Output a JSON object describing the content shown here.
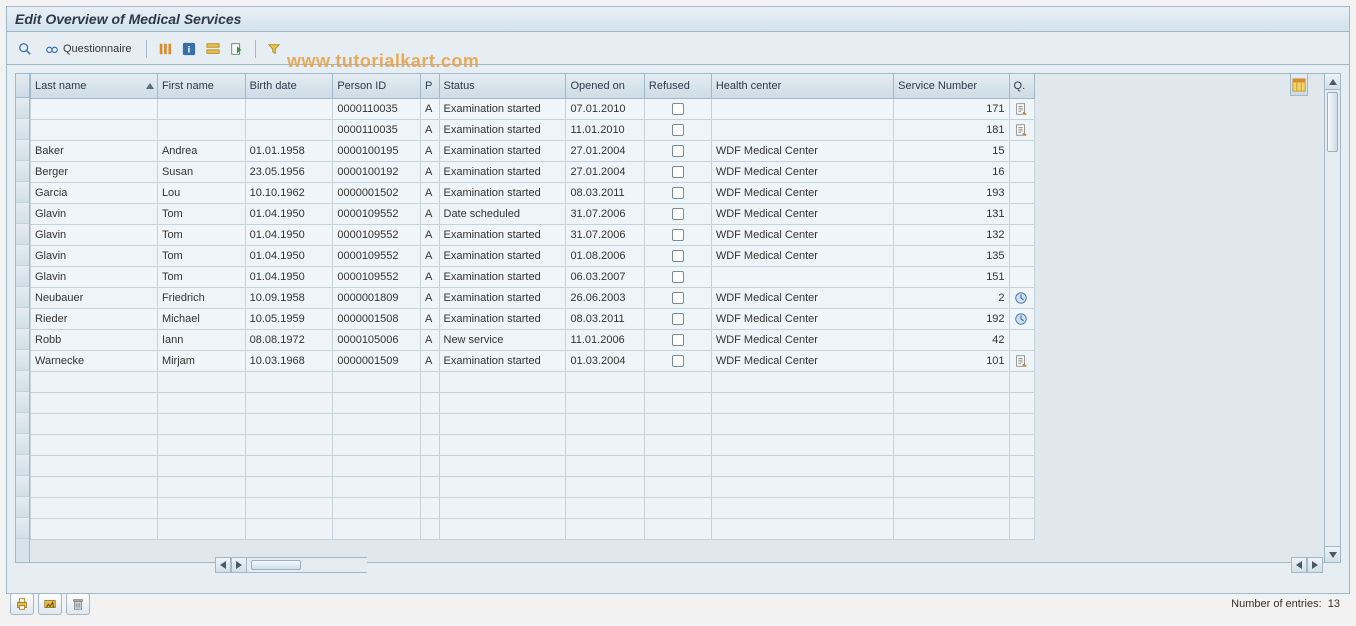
{
  "title": "Edit Overview of Medical Services",
  "watermark": "www.tutorialkart.com",
  "toolbar": {
    "questionnaire_label": "Questionnaire"
  },
  "colors": {
    "window_bg": "#e6eef4",
    "border": "#a0b8c8",
    "header_grad_top": "#e4ecf2",
    "header_grad_bot": "#cedce6",
    "row_bg": "#f0f5f9",
    "accent": "#e6a44a"
  },
  "table": {
    "columns": [
      {
        "key": "last_name",
        "label": "Last name",
        "width": 110,
        "align": "left",
        "sorted_asc": true
      },
      {
        "key": "first_name",
        "label": "First name",
        "width": 76,
        "align": "left"
      },
      {
        "key": "birth_date",
        "label": "Birth date",
        "width": 76,
        "align": "left"
      },
      {
        "key": "person_id",
        "label": "Person ID",
        "width": 76,
        "align": "left"
      },
      {
        "key": "p",
        "label": "P",
        "width": 16,
        "align": "left"
      },
      {
        "key": "status",
        "label": "Status",
        "width": 110,
        "align": "left"
      },
      {
        "key": "opened_on",
        "label": "Opened on",
        "width": 68,
        "align": "left"
      },
      {
        "key": "refused",
        "label": "Refused",
        "width": 58,
        "align": "center"
      },
      {
        "key": "health_center",
        "label": "Health center",
        "width": 158,
        "align": "left"
      },
      {
        "key": "service_number",
        "label": "Service Number",
        "width": 100,
        "align": "right"
      },
      {
        "key": "q",
        "label": "Q.",
        "width": 22,
        "align": "center"
      }
    ],
    "rows": [
      {
        "last_name": "",
        "first_name": "",
        "birth_date": "",
        "person_id": "0000110035",
        "p": "A",
        "status": "Examination started",
        "opened_on": "07.01.2010",
        "refused": false,
        "health_center": "",
        "service_number": "171",
        "q": "doc"
      },
      {
        "last_name": "",
        "first_name": "",
        "birth_date": "",
        "person_id": "0000110035",
        "p": "A",
        "status": "Examination started",
        "opened_on": "11.01.2010",
        "refused": false,
        "health_center": "",
        "service_number": "181",
        "q": "doc"
      },
      {
        "last_name": "Baker",
        "first_name": "Andrea",
        "birth_date": "01.01.1958",
        "person_id": "0000100195",
        "p": "A",
        "status": "Examination started",
        "opened_on": "27.01.2004",
        "refused": false,
        "health_center": "WDF Medical Center",
        "service_number": "15",
        "q": ""
      },
      {
        "last_name": "Berger",
        "first_name": "Susan",
        "birth_date": "23.05.1956",
        "person_id": "0000100192",
        "p": "A",
        "status": "Examination started",
        "opened_on": "27.01.2004",
        "refused": false,
        "health_center": "WDF Medical Center",
        "service_number": "16",
        "q": ""
      },
      {
        "last_name": "Garcia",
        "first_name": "Lou",
        "birth_date": "10.10.1962",
        "person_id": "0000001502",
        "p": "A",
        "status": "Examination started",
        "opened_on": "08.03.2011",
        "refused": false,
        "health_center": "WDF Medical Center",
        "service_number": "193",
        "q": ""
      },
      {
        "last_name": "Glavin",
        "first_name": "Tom",
        "birth_date": "01.04.1950",
        "person_id": "0000109552",
        "p": "A",
        "status": "Date scheduled",
        "opened_on": "31.07.2006",
        "refused": false,
        "health_center": "WDF Medical Center",
        "service_number": "131",
        "q": ""
      },
      {
        "last_name": "Glavin",
        "first_name": "Tom",
        "birth_date": "01.04.1950",
        "person_id": "0000109552",
        "p": "A",
        "status": "Examination started",
        "opened_on": "31.07.2006",
        "refused": false,
        "health_center": "WDF Medical Center",
        "service_number": "132",
        "q": ""
      },
      {
        "last_name": "Glavin",
        "first_name": "Tom",
        "birth_date": "01.04.1950",
        "person_id": "0000109552",
        "p": "A",
        "status": "Examination started",
        "opened_on": "01.08.2006",
        "refused": false,
        "health_center": "WDF Medical Center",
        "service_number": "135",
        "q": ""
      },
      {
        "last_name": "Glavin",
        "first_name": "Tom",
        "birth_date": "01.04.1950",
        "person_id": "0000109552",
        "p": "A",
        "status": "Examination started",
        "opened_on": "06.03.2007",
        "refused": false,
        "health_center": "",
        "service_number": "151",
        "q": ""
      },
      {
        "last_name": "Neubauer",
        "first_name": "Friedrich",
        "birth_date": "10.09.1958",
        "person_id": "0000001809",
        "p": "A",
        "status": "Examination started",
        "opened_on": "26.06.2003",
        "refused": false,
        "health_center": "WDF Medical Center",
        "service_number": "2",
        "q": "clock"
      },
      {
        "last_name": "Rieder",
        "first_name": "Michael",
        "birth_date": "10.05.1959",
        "person_id": "0000001508",
        "p": "A",
        "status": "Examination started",
        "opened_on": "08.03.2011",
        "refused": false,
        "health_center": "WDF Medical Center",
        "service_number": "192",
        "q": "clock"
      },
      {
        "last_name": "Robb",
        "first_name": "Iann",
        "birth_date": "08.08.1972",
        "person_id": "0000105006",
        "p": "A",
        "status": "New service",
        "opened_on": "11.01.2006",
        "refused": false,
        "health_center": "WDF Medical Center",
        "service_number": "42",
        "q": ""
      },
      {
        "last_name": "Warnecke",
        "first_name": "Mirjam",
        "birth_date": "10.03.1968",
        "person_id": "0000001509",
        "p": "A",
        "status": "Examination started",
        "opened_on": "01.03.2004",
        "refused": false,
        "health_center": "WDF Medical Center",
        "service_number": "101",
        "q": "doc"
      }
    ],
    "empty_rows": 8
  },
  "footer": {
    "entries_label": "Number of entries:",
    "entries_count": "13"
  }
}
